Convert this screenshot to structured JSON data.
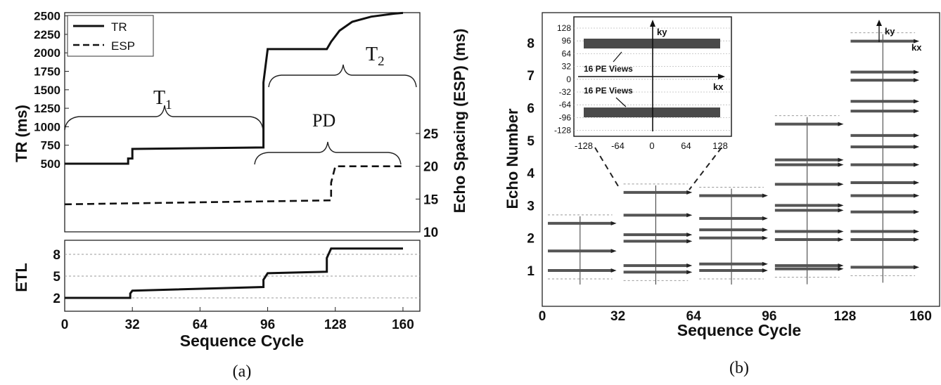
{
  "panel_a": {
    "caption": "(a)",
    "left_ylabel": "TR (ms)",
    "right_ylabel": "Echo Spacing (ESP) (ms)",
    "etl_ylabel": "ETL",
    "xlabel": "Sequence Cycle",
    "legend": [
      {
        "label": "TR",
        "style": "solid"
      },
      {
        "label": "ESP",
        "style": "dashed"
      }
    ],
    "regions": [
      {
        "label": "T",
        "sub": "1"
      },
      {
        "label": "PD",
        "sub": ""
      },
      {
        "label": "T",
        "sub": "2"
      }
    ]
  },
  "panel_b": {
    "caption": "(b)",
    "ylabel": "Echo Number",
    "xlabel": "Sequence Cycle",
    "inset": {
      "ky_label": "ky",
      "kx_label": "kx",
      "view_label_top": "16 PE Views",
      "view_label_bottom": "16 PE Views",
      "yticks": [
        "128",
        "96",
        "64",
        "32",
        "0",
        "-32",
        "-64",
        "-96",
        "-128"
      ],
      "xticks": [
        "-128",
        "-64",
        "0",
        "64",
        "128"
      ]
    },
    "corner_ky": "ky",
    "corner_kx": "kx"
  },
  "chart_data": [
    {
      "type": "line",
      "xlim": [
        0,
        168
      ],
      "xticks": [
        "0",
        "32",
        "64",
        "96",
        "128",
        "160"
      ],
      "y_left_ticks": [
        "500",
        "750",
        "1000",
        "1250",
        "1500",
        "1750",
        "2000",
        "2250",
        "2500"
      ],
      "y_right_ticks": [
        "10",
        "15",
        "20",
        "25"
      ],
      "series": [
        {
          "name": "TR",
          "axis": "left",
          "points": [
            [
              0,
              500
            ],
            [
              30,
              500
            ],
            [
              30,
              570
            ],
            [
              32,
              570
            ],
            [
              32,
              700
            ],
            [
              94,
              720
            ],
            [
              94,
              1600
            ],
            [
              96,
              2050
            ],
            [
              124,
              2050
            ],
            [
              126,
              2150
            ],
            [
              130,
              2300
            ],
            [
              136,
              2420
            ],
            [
              145,
              2490
            ],
            [
              156,
              2530
            ],
            [
              160,
              2540
            ]
          ]
        },
        {
          "name": "ESP",
          "axis": "right",
          "points": [
            [
              0,
              14.2
            ],
            [
              126,
              14.8
            ],
            [
              126,
              17.5
            ],
            [
              128,
              20
            ],
            [
              160,
              20
            ]
          ]
        }
      ]
    },
    {
      "type": "line",
      "xlim": [
        0,
        168
      ],
      "xticks": [
        "0",
        "32",
        "64",
        "96",
        "128",
        "160"
      ],
      "yticks": [
        "2",
        "5",
        "8"
      ],
      "series": [
        {
          "name": "ETL",
          "points": [
            [
              0,
              2
            ],
            [
              31,
              2
            ],
            [
              31,
              2.6
            ],
            [
              32,
              3
            ],
            [
              94,
              3.5
            ],
            [
              94,
              4.5
            ],
            [
              96,
              5.4
            ],
            [
              124,
              5.6
            ],
            [
              124,
              7.5
            ],
            [
              126,
              8.8
            ],
            [
              160,
              8.8
            ]
          ]
        }
      ]
    },
    {
      "type": "scatter",
      "xlim": [
        0,
        168
      ],
      "ylim": [
        0.3,
        8.9
      ],
      "xticks": [
        "0",
        "32",
        "64",
        "96",
        "128",
        "160"
      ],
      "yticks": [
        "1",
        "2",
        "3",
        "4",
        "5",
        "6",
        "7",
        "8"
      ],
      "groups": [
        {
          "x": [
            0,
            32
          ],
          "etl": 2,
          "echo_positions": [
            1.0,
            1.6,
            2.45
          ]
        },
        {
          "x": [
            32,
            64
          ],
          "etl": 3,
          "echo_positions": [
            0.95,
            1.15,
            1.9,
            2.1,
            2.7,
            3.4
          ]
        },
        {
          "x": [
            64,
            96
          ],
          "etl": 3,
          "echo_positions": [
            1.0,
            1.2,
            2.0,
            2.25,
            2.6,
            3.3
          ]
        },
        {
          "x": [
            96,
            128
          ],
          "etl": 5,
          "echo_positions": [
            1.05,
            1.15,
            1.95,
            2.2,
            2.85,
            3.0,
            3.65,
            4.25,
            4.4,
            5.5
          ]
        },
        {
          "x": [
            128,
            160
          ],
          "etl": 8,
          "echo_positions": [
            1.1,
            1.95,
            2.2,
            2.8,
            3.3,
            3.7,
            4.25,
            4.8,
            5.15,
            5.9,
            6.2,
            6.85,
            7.1,
            8.05
          ]
        }
      ]
    }
  ]
}
